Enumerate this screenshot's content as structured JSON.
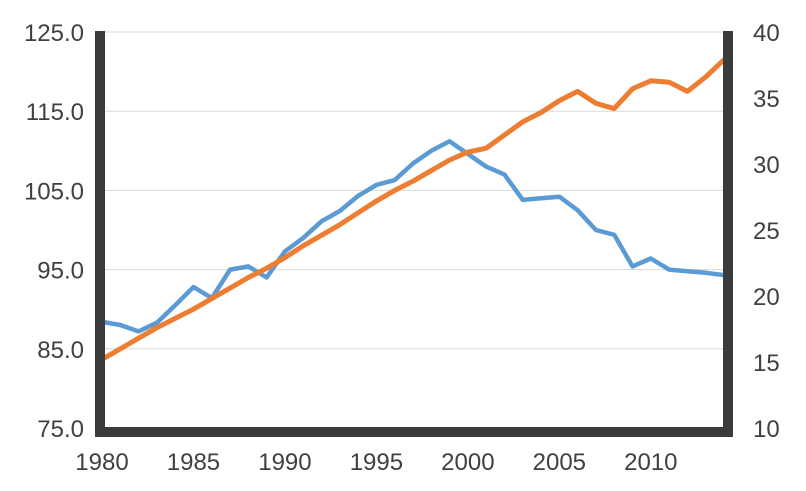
{
  "chart_data": {
    "type": "line",
    "title": "",
    "legend": "none",
    "grid": true,
    "x": [
      1980,
      1981,
      1982,
      1983,
      1984,
      1985,
      1986,
      1987,
      1988,
      1989,
      1990,
      1991,
      1992,
      1993,
      1994,
      1995,
      1996,
      1997,
      1998,
      1999,
      2000,
      2001,
      2002,
      2003,
      2004,
      2005,
      2006,
      2007,
      2008,
      2009,
      2010,
      2011,
      2012,
      2013,
      2014
    ],
    "x_tick_labels": [
      "1980",
      "1985",
      "1990",
      "1995",
      "2000",
      "2005",
      "2010"
    ],
    "x_tick_years": [
      1980,
      1985,
      1990,
      1995,
      2000,
      2005,
      2010
    ],
    "left_axis": {
      "min": 75,
      "max": 125,
      "tick_step": 10,
      "tick_values": [
        125,
        115,
        105,
        95,
        85,
        75
      ],
      "tick_labels": [
        "125.0",
        "115.0",
        "105.0",
        "95.0",
        "85.0",
        "75.0"
      ]
    },
    "right_axis": {
      "min": 10,
      "max": 40,
      "tick_step": 5,
      "tick_values": [
        40,
        35,
        30,
        25,
        20,
        15,
        10
      ],
      "tick_labels": [
        "40",
        "35",
        "30",
        "25",
        "20",
        "15",
        "10"
      ]
    },
    "series": [
      {
        "name": "series-1-blue",
        "axis": "left",
        "color": "#5B9BD5",
        "stroke_width": 4.5,
        "values": [
          88.4,
          88.0,
          87.2,
          88.3,
          90.5,
          92.8,
          91.4,
          95.0,
          95.4,
          94.0,
          97.3,
          99.0,
          101.1,
          102.4,
          104.3,
          105.7,
          106.3,
          108.4,
          110.0,
          111.2,
          109.6,
          108.0,
          107.0,
          103.8,
          104.0,
          104.2,
          102.5,
          100.0,
          99.4,
          95.4,
          96.4,
          95.0,
          94.8,
          94.6,
          94.3
        ]
      },
      {
        "name": "series-2-orange",
        "axis": "right",
        "color": "#ED7D31",
        "stroke_width": 5,
        "values": [
          15.2,
          16.0,
          16.8,
          17.6,
          18.3,
          19.0,
          19.8,
          20.6,
          21.4,
          22.1,
          22.9,
          23.8,
          24.6,
          25.4,
          26.3,
          27.2,
          28.0,
          28.7,
          29.5,
          30.3,
          30.9,
          31.2,
          32.2,
          33.2,
          33.9,
          34.8,
          35.5,
          34.6,
          34.2,
          35.7,
          36.3,
          36.2,
          35.5,
          36.6,
          37.9
        ]
      }
    ]
  },
  "style": {
    "background": "#ffffff",
    "axis_bar_color": "#3B3B3B",
    "grid_color": "#D9D9D9",
    "label_color": "#404040"
  }
}
